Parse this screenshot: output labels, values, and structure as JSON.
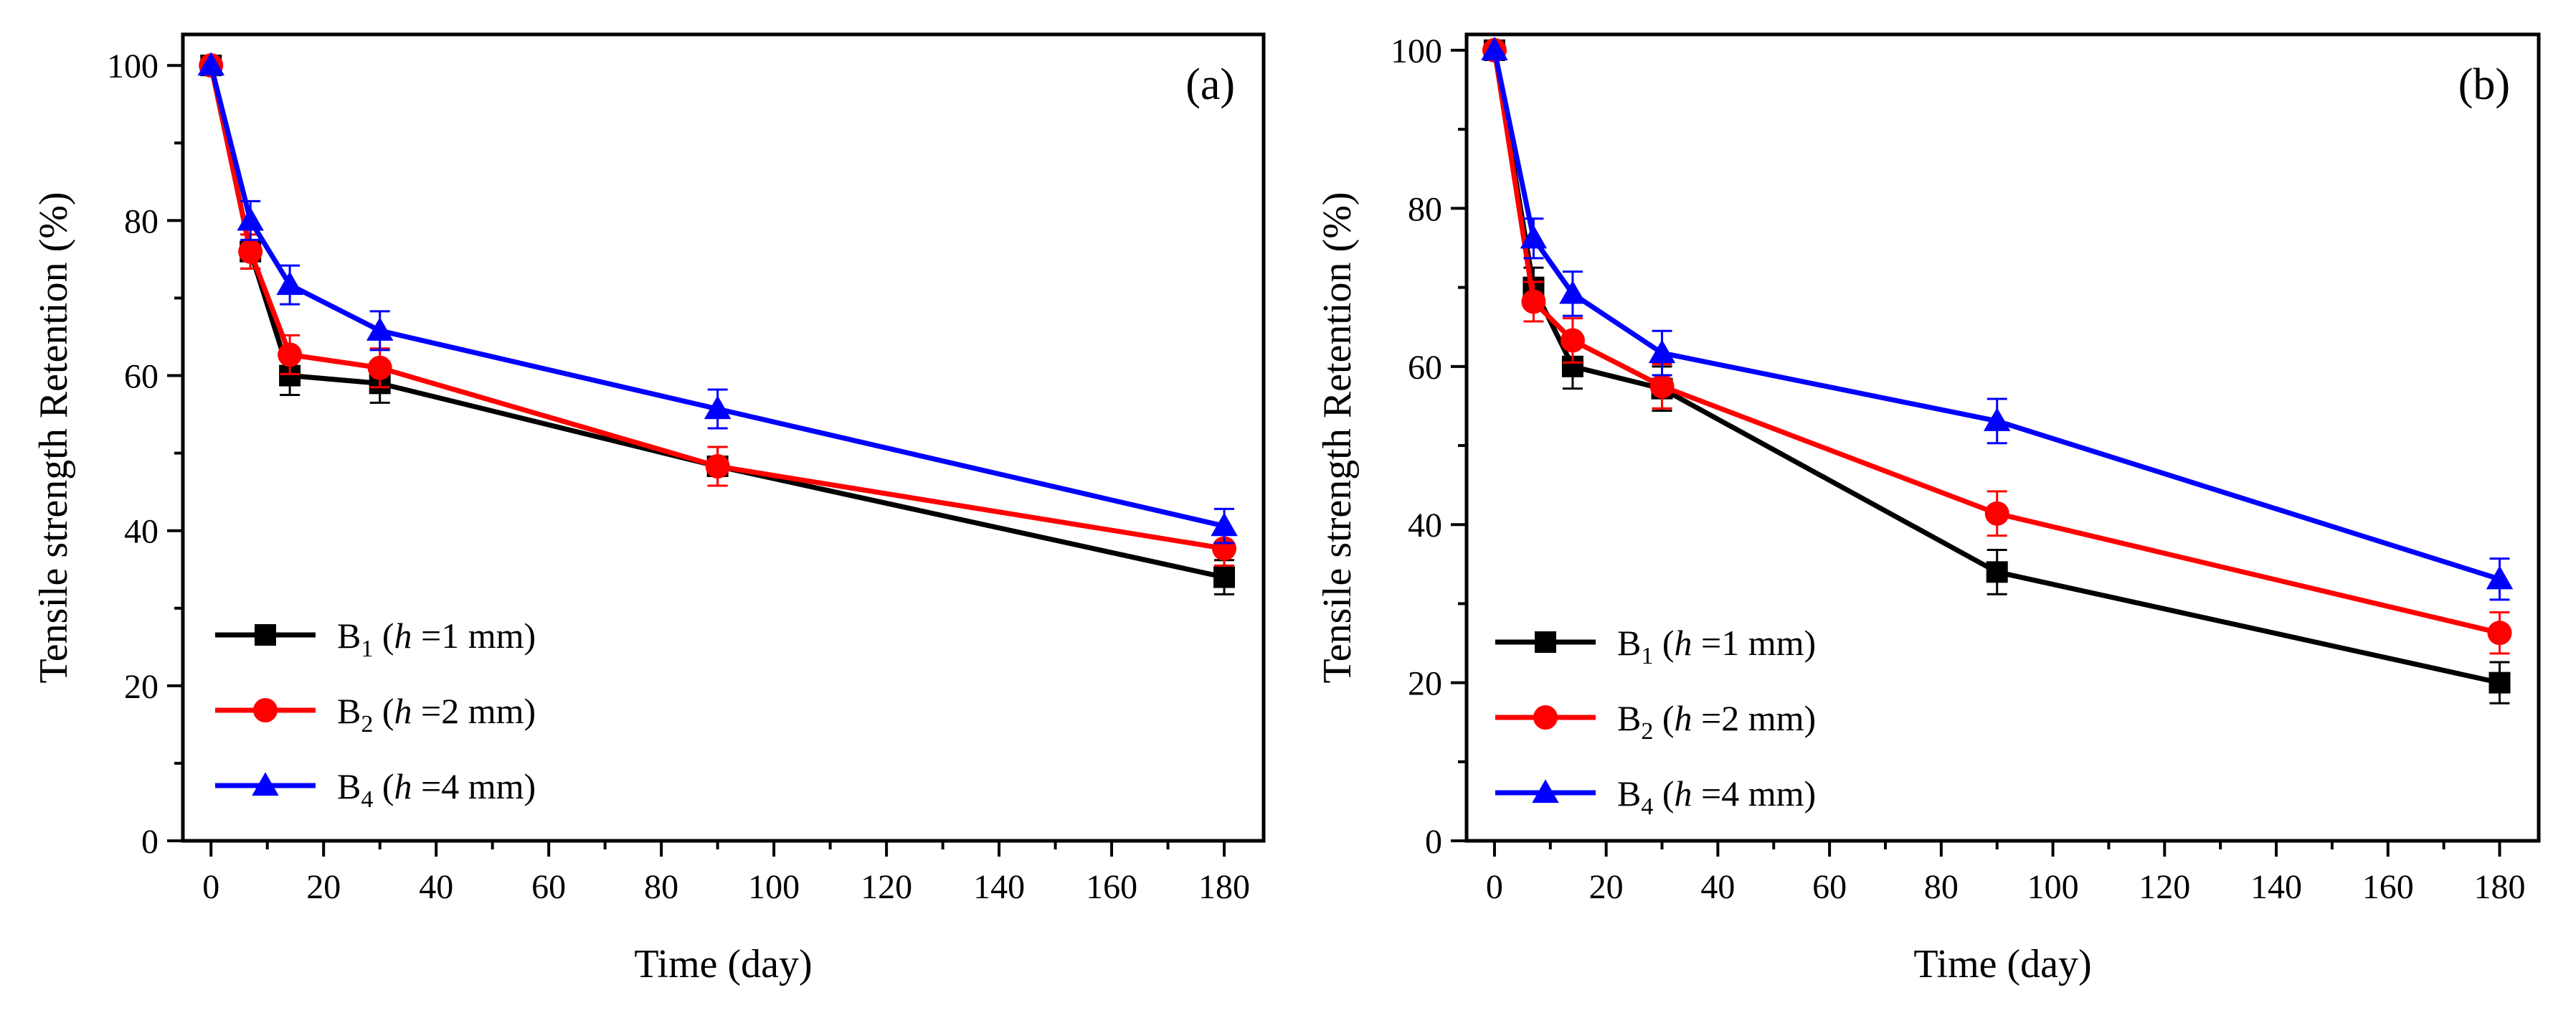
{
  "chart_data": [
    {
      "type": "line",
      "panel_label": "(a)",
      "xlabel": "Time (day)",
      "ylabel": "Tensile strength Retention (%)",
      "xlim": [
        -5,
        187
      ],
      "ylim": [
        0,
        104
      ],
      "xticks": [
        0,
        20,
        40,
        60,
        80,
        100,
        120,
        140,
        160,
        180
      ],
      "yticks": [
        0,
        20,
        40,
        60,
        80,
        100
      ],
      "legend_position": "bottom-left",
      "series": [
        {
          "name": "B1 (h =1 mm)",
          "legend": {
            "base": "B",
            "sub": "1",
            "open": " (",
            "var": "h",
            "rest": " =1 mm)"
          },
          "color": "#000000",
          "marker": "square",
          "x": [
            0,
            7,
            14,
            30,
            90,
            180
          ],
          "y": [
            100,
            76,
            60,
            59,
            48.3,
            34
          ],
          "err": [
            0,
            2.2,
            2.5,
            2.5,
            2.5,
            2.2
          ]
        },
        {
          "name": "B2 (h =2 mm)",
          "legend": {
            "base": "B",
            "sub": "2",
            "open": " (",
            "var": "h",
            "rest": " =2 mm)"
          },
          "color": "#ff0000",
          "marker": "circle",
          "x": [
            0,
            7,
            14,
            30,
            90,
            180
          ],
          "y": [
            100,
            76,
            62.7,
            61,
            48.3,
            37.7
          ],
          "err": [
            0,
            2.2,
            2.5,
            2.5,
            2.5,
            2.2
          ]
        },
        {
          "name": "B4 (h =4 mm)",
          "legend": {
            "base": "B",
            "sub": "4",
            "open": " (",
            "var": "h",
            "rest": " =4 mm)"
          },
          "color": "#0000ff",
          "marker": "triangle",
          "x": [
            0,
            7,
            14,
            30,
            90,
            180
          ],
          "y": [
            100,
            80,
            71.7,
            65.8,
            55.7,
            40.6
          ],
          "err": [
            0,
            2.5,
            2.5,
            2.5,
            2.5,
            2.2
          ]
        }
      ]
    },
    {
      "type": "line",
      "panel_label": "(b)",
      "xlabel": "Time (day)",
      "ylabel": "Tensile strength Retention (%)",
      "xlim": [
        -5,
        187
      ],
      "ylim": [
        0,
        102
      ],
      "xticks": [
        0,
        20,
        40,
        60,
        80,
        100,
        120,
        140,
        160,
        180
      ],
      "yticks": [
        0,
        20,
        40,
        60,
        80,
        100
      ],
      "legend_position": "bottom-left",
      "series": [
        {
          "name": "B1 (h =1 mm)",
          "legend": {
            "base": "B",
            "sub": "1",
            "open": " (",
            "var": "h",
            "rest": " =1 mm)"
          },
          "color": "#000000",
          "marker": "square",
          "x": [
            0,
            7,
            14,
            30,
            90,
            180
          ],
          "y": [
            100,
            70,
            60,
            57.2,
            34,
            20
          ],
          "err": [
            0,
            2.5,
            2.8,
            2.8,
            2.8,
            2.6
          ]
        },
        {
          "name": "B2 (h =2 mm)",
          "legend": {
            "base": "B",
            "sub": "2",
            "open": " (",
            "var": "h",
            "rest": " =2 mm)"
          },
          "color": "#ff0000",
          "marker": "circle",
          "x": [
            0,
            7,
            14,
            30,
            90,
            180
          ],
          "y": [
            100,
            68.2,
            63.3,
            57.5,
            41.4,
            26.3
          ],
          "err": [
            0,
            2.5,
            2.8,
            2.8,
            2.8,
            2.6
          ]
        },
        {
          "name": "B4 (h =4 mm)",
          "legend": {
            "base": "B",
            "sub": "4",
            "open": " (",
            "var": "h",
            "rest": " =4 mm)"
          },
          "color": "#0000ff",
          "marker": "triangle",
          "x": [
            0,
            7,
            14,
            30,
            90,
            180
          ],
          "y": [
            100,
            76.2,
            69.2,
            61.7,
            53.1,
            33.1
          ],
          "err": [
            0,
            2.5,
            2.8,
            2.8,
            2.8,
            2.6
          ]
        }
      ]
    }
  ]
}
